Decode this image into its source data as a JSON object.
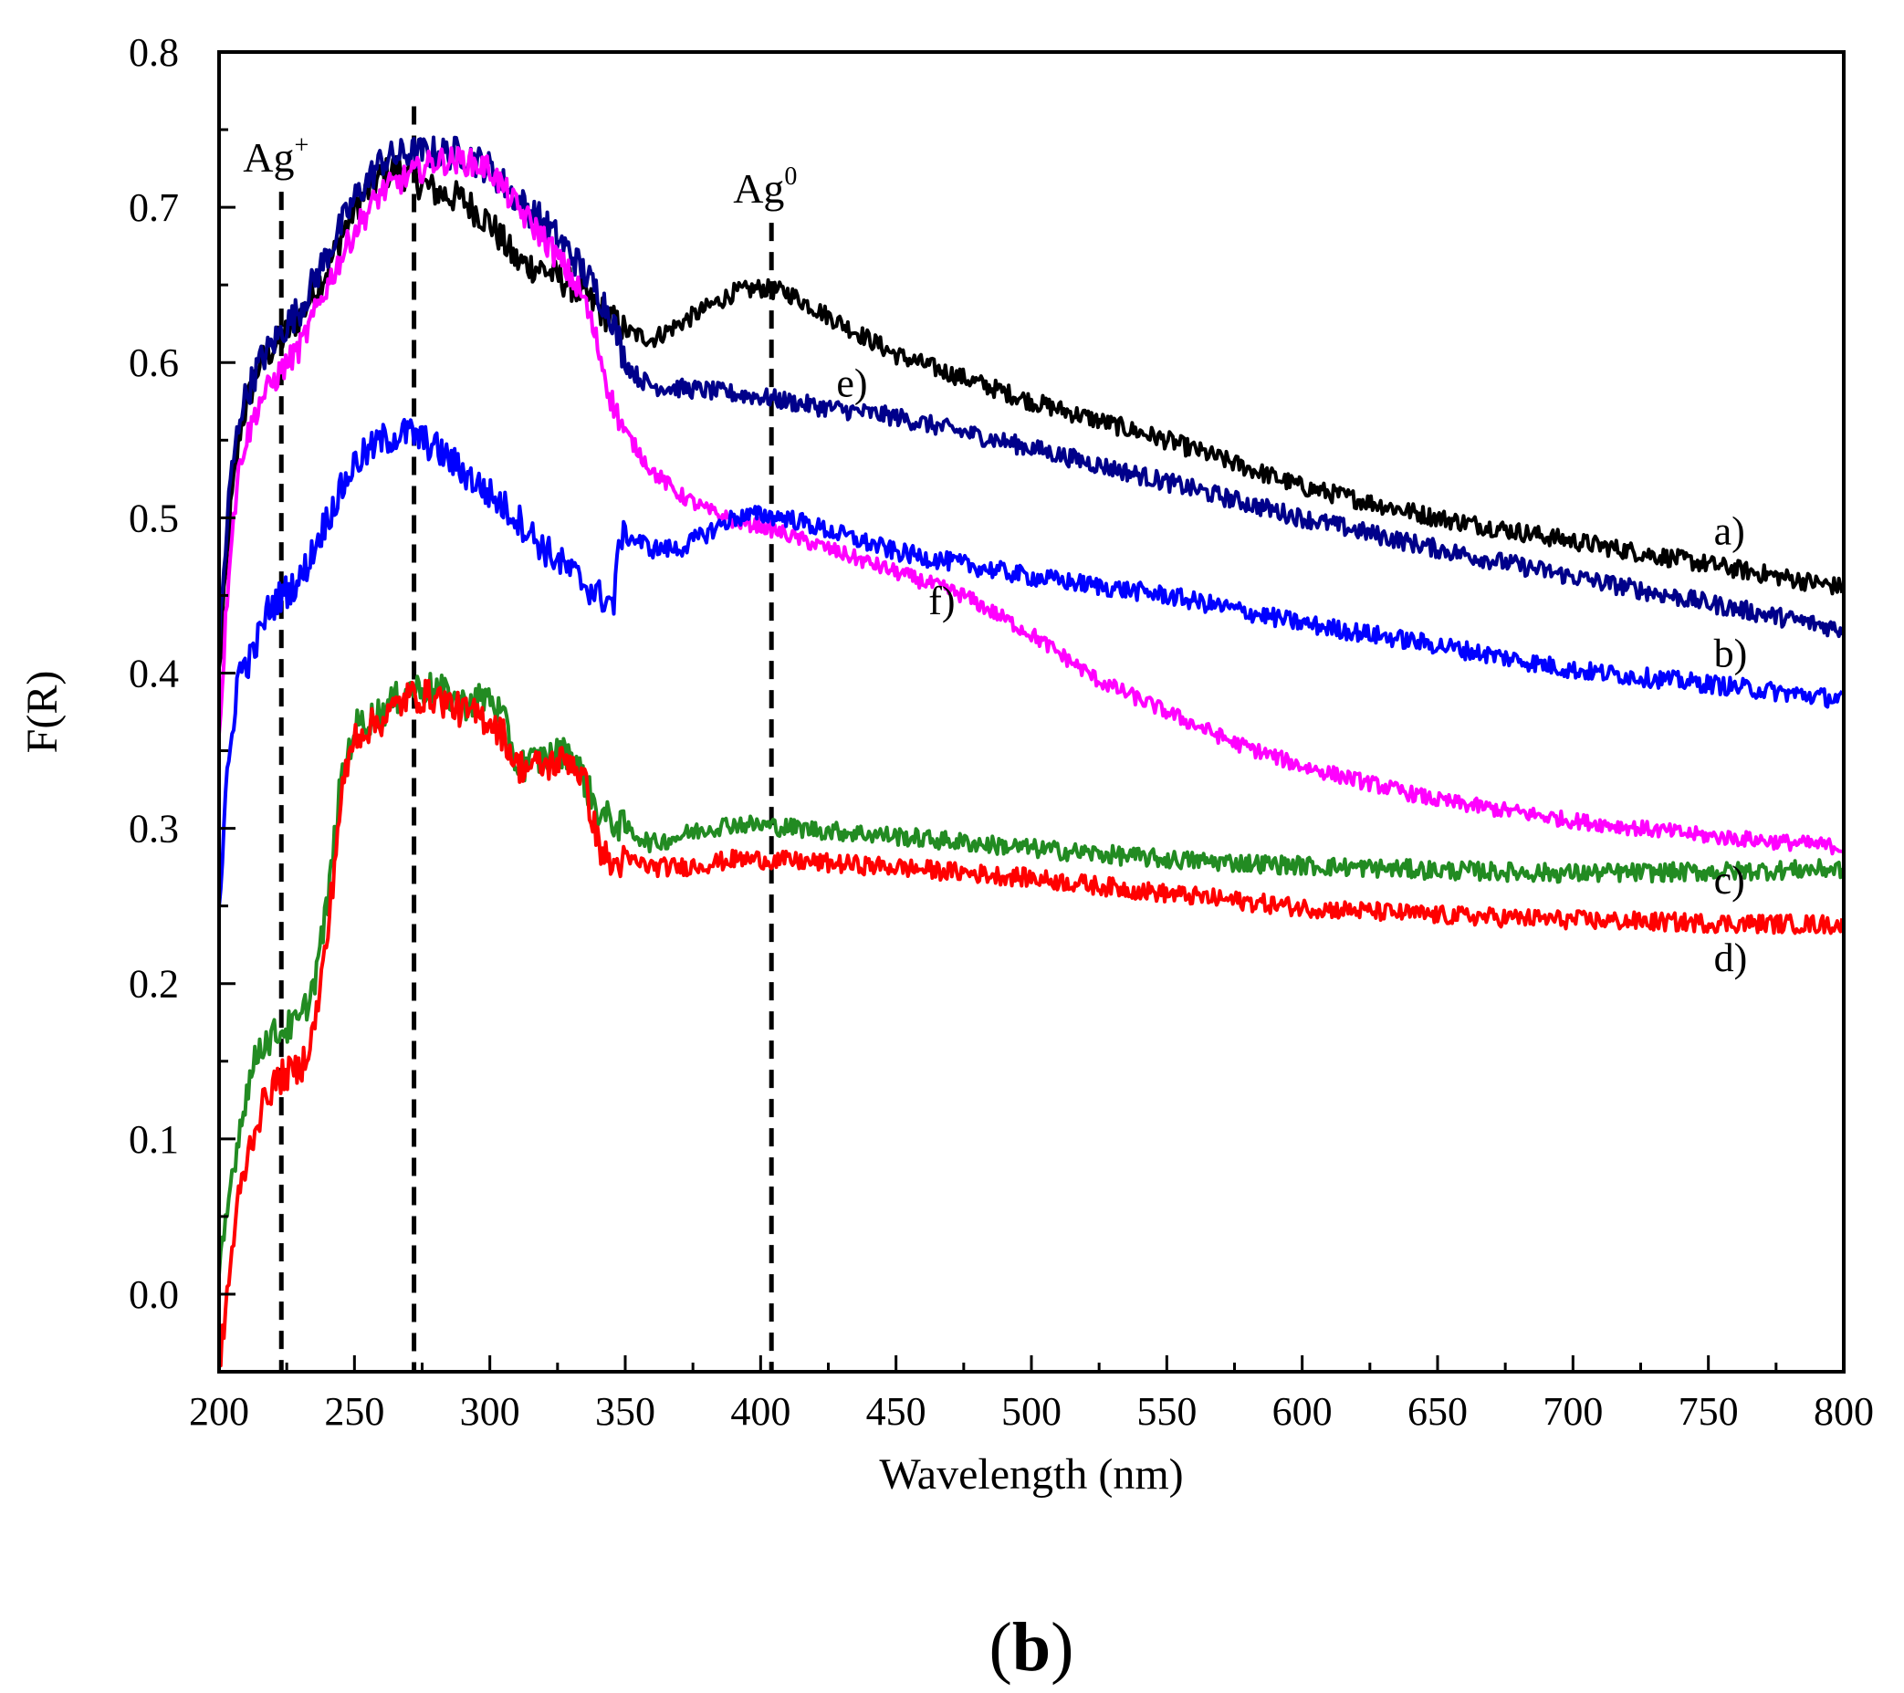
{
  "chart_data": {
    "type": "line",
    "xlabel": "Wavelength (nm)",
    "ylabel": "F(R)",
    "xlim": [
      200,
      800
    ],
    "ylim": [
      -0.05,
      0.8
    ],
    "xticks": [
      200,
      250,
      300,
      350,
      400,
      450,
      500,
      550,
      600,
      650,
      700,
      750,
      800
    ],
    "xtick_labels": [
      "200",
      "250",
      "300",
      "350",
      "400",
      "450",
      "500",
      "550",
      "600",
      "650",
      "700",
      "750",
      "800"
    ],
    "yticks": [
      0.0,
      0.1,
      0.2,
      0.3,
      0.4,
      0.5,
      0.6,
      0.7,
      0.8
    ],
    "ytick_labels": [
      "0.0",
      "0.1",
      "0.2",
      "0.3",
      "0.4",
      "0.5",
      "0.6",
      "0.7",
      "0.8"
    ],
    "grid": false,
    "panel_label": {
      "open": "(",
      "letter": "b",
      "close": ")"
    },
    "annotations": [
      {
        "base": "Ag",
        "sup": "+",
        "x": 223,
        "line_top": 0.71
      },
      {
        "base": "Ag",
        "sup": "0",
        "x": 404,
        "line_top": 0.69
      }
    ],
    "reference_lines_x": [
      223,
      272,
      404
    ],
    "middle_line_top": 0.765,
    "series": [
      {
        "name": "a)",
        "color": "#000000",
        "noise": 0.006,
        "label_pos": [
          752,
          0.483
        ],
        "points": [
          [
            200,
            0.4
          ],
          [
            204,
            0.5
          ],
          [
            208,
            0.56
          ],
          [
            215,
            0.6
          ],
          [
            223,
            0.615
          ],
          [
            230,
            0.63
          ],
          [
            240,
            0.66
          ],
          [
            250,
            0.7
          ],
          [
            260,
            0.72
          ],
          [
            265,
            0.725
          ],
          [
            270,
            0.72
          ],
          [
            280,
            0.71
          ],
          [
            290,
            0.705
          ],
          [
            300,
            0.69
          ],
          [
            310,
            0.665
          ],
          [
            320,
            0.66
          ],
          [
            330,
            0.65
          ],
          [
            340,
            0.635
          ],
          [
            350,
            0.62
          ],
          [
            360,
            0.615
          ],
          [
            370,
            0.625
          ],
          [
            380,
            0.635
          ],
          [
            390,
            0.645
          ],
          [
            400,
            0.648
          ],
          [
            410,
            0.645
          ],
          [
            420,
            0.635
          ],
          [
            450,
            0.605
          ],
          [
            500,
            0.575
          ],
          [
            550,
            0.55
          ],
          [
            600,
            0.52
          ],
          [
            650,
            0.5
          ],
          [
            700,
            0.485
          ],
          [
            750,
            0.47
          ],
          [
            800,
            0.455
          ]
        ]
      },
      {
        "name": "b)",
        "color": "#0000ff",
        "noise": 0.006,
        "label_pos": [
          752,
          0.404
        ],
        "points": [
          [
            200,
            0.25
          ],
          [
            203,
            0.33
          ],
          [
            207,
            0.4
          ],
          [
            212,
            0.41
          ],
          [
            218,
            0.44
          ],
          [
            223,
            0.45
          ],
          [
            230,
            0.46
          ],
          [
            240,
            0.5
          ],
          [
            250,
            0.535
          ],
          [
            260,
            0.55
          ],
          [
            270,
            0.555
          ],
          [
            280,
            0.545
          ],
          [
            290,
            0.53
          ],
          [
            300,
            0.515
          ],
          [
            310,
            0.5
          ],
          [
            320,
            0.48
          ],
          [
            330,
            0.465
          ],
          [
            340,
            0.45
          ],
          [
            346,
            0.445
          ],
          [
            348,
            0.49
          ],
          [
            355,
            0.485
          ],
          [
            360,
            0.48
          ],
          [
            370,
            0.48
          ],
          [
            380,
            0.49
          ],
          [
            390,
            0.5
          ],
          [
            400,
            0.502
          ],
          [
            410,
            0.5
          ],
          [
            450,
            0.478
          ],
          [
            500,
            0.462
          ],
          [
            550,
            0.45
          ],
          [
            600,
            0.432
          ],
          [
            650,
            0.418
          ],
          [
            700,
            0.402
          ],
          [
            750,
            0.393
          ],
          [
            800,
            0.383
          ]
        ]
      },
      {
        "name": "c)",
        "color": "#228b22",
        "noise": 0.006,
        "label_pos": [
          752,
          0.258
        ],
        "points": [
          [
            200,
            0.01
          ],
          [
            205,
            0.08
          ],
          [
            210,
            0.13
          ],
          [
            215,
            0.16
          ],
          [
            223,
            0.17
          ],
          [
            230,
            0.175
          ],
          [
            235,
            0.2
          ],
          [
            240,
            0.25
          ],
          [
            245,
            0.33
          ],
          [
            250,
            0.365
          ],
          [
            260,
            0.375
          ],
          [
            270,
            0.39
          ],
          [
            280,
            0.39
          ],
          [
            290,
            0.38
          ],
          [
            300,
            0.385
          ],
          [
            305,
            0.37
          ],
          [
            310,
            0.34
          ],
          [
            320,
            0.345
          ],
          [
            330,
            0.35
          ],
          [
            335,
            0.33
          ],
          [
            340,
            0.31
          ],
          [
            350,
            0.3
          ],
          [
            360,
            0.29
          ],
          [
            370,
            0.295
          ],
          [
            380,
            0.3
          ],
          [
            390,
            0.303
          ],
          [
            400,
            0.302
          ],
          [
            450,
            0.295
          ],
          [
            500,
            0.287
          ],
          [
            550,
            0.28
          ],
          [
            600,
            0.276
          ],
          [
            650,
            0.273
          ],
          [
            700,
            0.271
          ],
          [
            750,
            0.272
          ],
          [
            800,
            0.274
          ]
        ]
      },
      {
        "name": "d)",
        "color": "#ff0000",
        "noise": 0.006,
        "label_pos": [
          752,
          0.208
        ],
        "points": [
          [
            200,
            -0.05
          ],
          [
            203,
            0.0
          ],
          [
            207,
            0.06
          ],
          [
            212,
            0.1
          ],
          [
            218,
            0.13
          ],
          [
            223,
            0.14
          ],
          [
            230,
            0.145
          ],
          [
            235,
            0.17
          ],
          [
            240,
            0.23
          ],
          [
            245,
            0.32
          ],
          [
            250,
            0.36
          ],
          [
            260,
            0.37
          ],
          [
            270,
            0.385
          ],
          [
            280,
            0.385
          ],
          [
            290,
            0.375
          ],
          [
            300,
            0.37
          ],
          [
            305,
            0.36
          ],
          [
            310,
            0.34
          ],
          [
            320,
            0.34
          ],
          [
            330,
            0.345
          ],
          [
            335,
            0.33
          ],
          [
            340,
            0.29
          ],
          [
            345,
            0.275
          ],
          [
            350,
            0.28
          ],
          [
            360,
            0.275
          ],
          [
            370,
            0.275
          ],
          [
            380,
            0.277
          ],
          [
            390,
            0.28
          ],
          [
            400,
            0.28
          ],
          [
            450,
            0.275
          ],
          [
            500,
            0.268
          ],
          [
            550,
            0.258
          ],
          [
            600,
            0.249
          ],
          [
            650,
            0.244
          ],
          [
            700,
            0.241
          ],
          [
            750,
            0.239
          ],
          [
            800,
            0.238
          ]
        ]
      },
      {
        "name": "e)",
        "color": "#00008b",
        "noise": 0.006,
        "label_pos": [
          428,
          0.578
        ],
        "points": [
          [
            200,
            0.42
          ],
          [
            204,
            0.52
          ],
          [
            208,
            0.57
          ],
          [
            215,
            0.6
          ],
          [
            223,
            0.62
          ],
          [
            230,
            0.635
          ],
          [
            240,
            0.67
          ],
          [
            250,
            0.705
          ],
          [
            260,
            0.73
          ],
          [
            270,
            0.735
          ],
          [
            280,
            0.735
          ],
          [
            290,
            0.735
          ],
          [
            300,
            0.725
          ],
          [
            310,
            0.705
          ],
          [
            320,
            0.69
          ],
          [
            330,
            0.67
          ],
          [
            340,
            0.645
          ],
          [
            345,
            0.63
          ],
          [
            350,
            0.6
          ],
          [
            355,
            0.59
          ],
          [
            360,
            0.585
          ],
          [
            380,
            0.582
          ],
          [
            400,
            0.578
          ],
          [
            420,
            0.572
          ],
          [
            450,
            0.565
          ],
          [
            500,
            0.545
          ],
          [
            550,
            0.523
          ],
          [
            600,
            0.5
          ],
          [
            650,
            0.48
          ],
          [
            700,
            0.462
          ],
          [
            750,
            0.445
          ],
          [
            800,
            0.428
          ]
        ]
      },
      {
        "name": "f)",
        "color": "#ff00ff",
        "noise": 0.005,
        "label_pos": [
          462,
          0.438
        ],
        "points": [
          [
            200,
            0.36
          ],
          [
            204,
            0.48
          ],
          [
            208,
            0.54
          ],
          [
            215,
            0.575
          ],
          [
            223,
            0.595
          ],
          [
            230,
            0.61
          ],
          [
            240,
            0.65
          ],
          [
            250,
            0.685
          ],
          [
            260,
            0.71
          ],
          [
            270,
            0.72
          ],
          [
            280,
            0.73
          ],
          [
            290,
            0.73
          ],
          [
            300,
            0.725
          ],
          [
            310,
            0.7
          ],
          [
            320,
            0.68
          ],
          [
            330,
            0.655
          ],
          [
            335,
            0.64
          ],
          [
            340,
            0.61
          ],
          [
            345,
            0.575
          ],
          [
            350,
            0.555
          ],
          [
            360,
            0.53
          ],
          [
            370,
            0.515
          ],
          [
            380,
            0.505
          ],
          [
            390,
            0.498
          ],
          [
            400,
            0.495
          ],
          [
            425,
            0.48
          ],
          [
            450,
            0.465
          ],
          [
            475,
            0.45
          ],
          [
            500,
            0.425
          ],
          [
            525,
            0.395
          ],
          [
            550,
            0.375
          ],
          [
            575,
            0.355
          ],
          [
            600,
            0.34
          ],
          [
            650,
            0.318
          ],
          [
            700,
            0.305
          ],
          [
            750,
            0.295
          ],
          [
            800,
            0.288
          ]
        ]
      }
    ]
  }
}
